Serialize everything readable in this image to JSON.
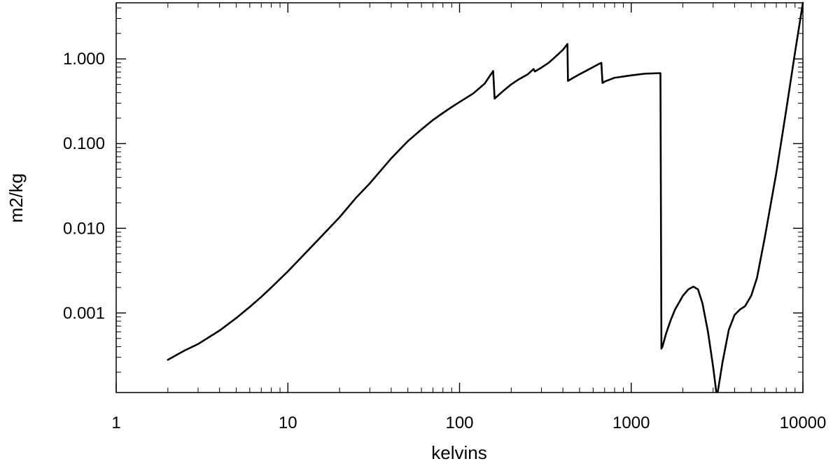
{
  "chart_data": {
    "type": "line",
    "title": "",
    "xlabel": "kelvins",
    "ylabel": "m2/kg",
    "xscale": "log",
    "yscale": "log",
    "xlim": [
      1,
      10000
    ],
    "ylim": [
      0.000115,
      4.6
    ],
    "grid": false,
    "line_color": "#000000",
    "xticks": [
      {
        "value": 1,
        "label": "1"
      },
      {
        "value": 10,
        "label": "10"
      },
      {
        "value": 100,
        "label": "100"
      },
      {
        "value": 1000,
        "label": "1000"
      },
      {
        "value": 10000,
        "label": "10000"
      }
    ],
    "yticks": [
      {
        "value": 0.001,
        "label": "0.001"
      },
      {
        "value": 0.01,
        "label": "0.010"
      },
      {
        "value": 0.1,
        "label": "0.100"
      },
      {
        "value": 1,
        "label": "1.000"
      }
    ],
    "series": [
      {
        "x": [
          2,
          2.5,
          3,
          4,
          5,
          6,
          7,
          8,
          10,
          13,
          15,
          20,
          25,
          30,
          40,
          50,
          60,
          70,
          80,
          90,
          100,
          120,
          140,
          157,
          160,
          180,
          200,
          220,
          250,
          270,
          275,
          300,
          330,
          360,
          400,
          425,
          428,
          460,
          500,
          550,
          600,
          640,
          670,
          680,
          700,
          800,
          1000,
          1200,
          1480,
          1500,
          1520,
          1600,
          1700,
          1800,
          2000,
          2150,
          2300,
          2450,
          2600,
          2800,
          3000,
          3130,
          3200,
          3400,
          3700,
          4000,
          4300,
          4600,
          5000,
          5400,
          6000,
          7000,
          8000,
          9000,
          10000
        ],
        "y": [
          0.00028,
          0.00036,
          0.00043,
          0.00062,
          0.00087,
          0.00118,
          0.00155,
          0.002,
          0.0031,
          0.0054,
          0.0073,
          0.0135,
          0.023,
          0.034,
          0.067,
          0.107,
          0.147,
          0.19,
          0.23,
          0.27,
          0.31,
          0.39,
          0.51,
          0.72,
          0.34,
          0.42,
          0.5,
          0.57,
          0.66,
          0.76,
          0.71,
          0.79,
          0.9,
          1.05,
          1.28,
          1.5,
          0.55,
          0.6,
          0.66,
          0.73,
          0.8,
          0.86,
          0.9,
          0.52,
          0.54,
          0.6,
          0.64,
          0.67,
          0.68,
          0.00038,
          0.0004,
          0.00058,
          0.00083,
          0.0011,
          0.0016,
          0.0019,
          0.00205,
          0.0019,
          0.0013,
          0.0006,
          0.00023,
          0.000116,
          0.00012,
          0.00026,
          0.00063,
          0.00095,
          0.0011,
          0.0012,
          0.0016,
          0.0026,
          0.0078,
          0.045,
          0.25,
          1.2,
          4.6
        ]
      }
    ]
  }
}
